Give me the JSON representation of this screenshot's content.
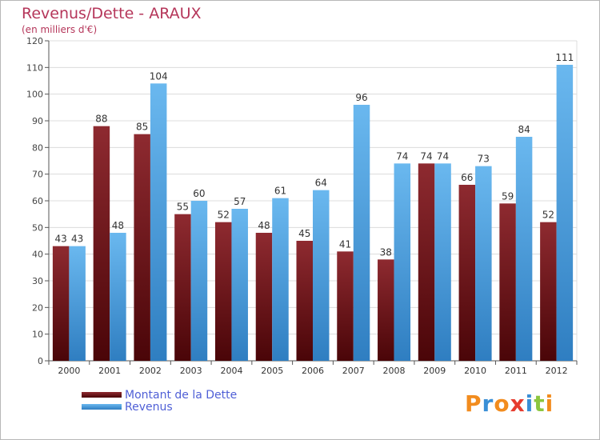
{
  "chart_data": {
    "type": "bar",
    "title": "Revenus/Dette - ARAUX",
    "subtitle": "(en milliers d'€)",
    "categories": [
      "2000",
      "2001",
      "2002",
      "2003",
      "2004",
      "2005",
      "2006",
      "2007",
      "2008",
      "2009",
      "2010",
      "2011",
      "2012"
    ],
    "series": [
      {
        "name": "Montant de la Dette",
        "color": "#7a1518",
        "values": [
          43,
          88,
          85,
          55,
          52,
          48,
          45,
          41,
          38,
          74,
          66,
          59,
          52
        ]
      },
      {
        "name": "Revenus",
        "color": "#3f98dc",
        "values": [
          43,
          48,
          104,
          60,
          57,
          61,
          64,
          96,
          74,
          74,
          73,
          84,
          111
        ]
      }
    ],
    "ylim": [
      0,
      120
    ],
    "yticks": [
      0,
      10,
      20,
      30,
      40,
      50,
      60,
      70,
      80,
      90,
      100,
      110,
      120
    ],
    "grid": true,
    "legend_position": "bottom-left",
    "data_labels": true
  },
  "logo": {
    "letters": [
      "P",
      "r",
      "o",
      "x",
      "i",
      "t",
      "i"
    ],
    "colors": [
      "#f28c1e",
      "#3a8fd6",
      "#f28c1e",
      "#e63b2e",
      "#3a8fd6",
      "#8cc63e",
      "#f28c1e"
    ]
  }
}
